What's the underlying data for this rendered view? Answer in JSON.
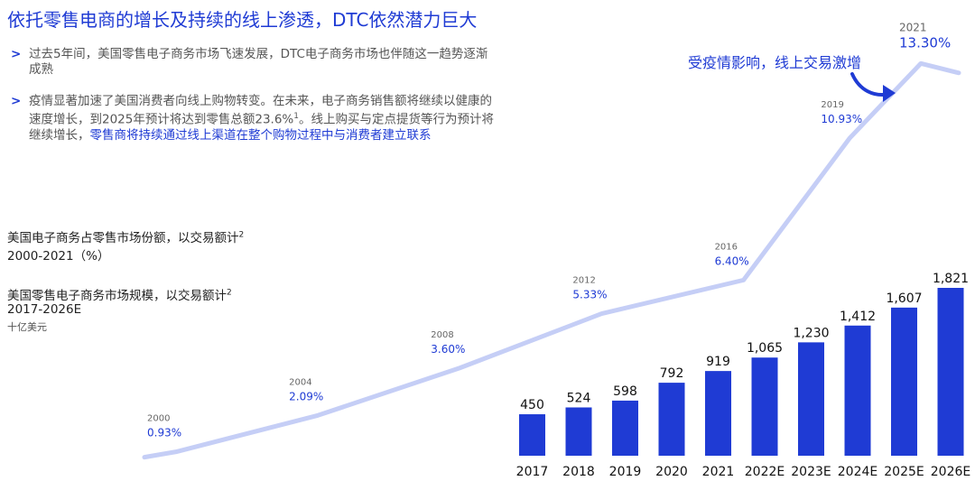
{
  "title": "依托零售电商的增长及持续的线上渗透，DTC依然潜力巨大",
  "bullets": {
    "b1": "过去5年间，美国零售电子商务市场飞速发展，DTC电子商务市场也伴随这一趋势逐渐成熟",
    "b2_a": "疫情显著加速了美国消费者向线上购物转变。在未来，电子商务销售额将继续以健康的速度增长，到2025年预计将达到零售总额23.6%",
    "b2_sup": "1",
    "b2_b": "。线上购买与定点提货等行为预计将继续增长，",
    "b2_hl": "零售商将持续通过线上渠道在整个购物过程中与消费者建立联系"
  },
  "labels": {
    "share_title": "美国电子商务占零售市场份额，以交易额计",
    "share_sup": "2",
    "share_range": "2000-2021（%）",
    "size_title": "美国零售电子商务市场规模，以交易额计",
    "size_sup": "2",
    "size_range": "2017-2026E",
    "size_unit": "十亿美元"
  },
  "annotation": "受疫情影响，线上交易激增",
  "colors": {
    "accent": "#1f3bd4",
    "bar": "#1f3bd4",
    "line": "#c5cef6"
  },
  "chart_data": [
    {
      "type": "line",
      "series": [
        {
          "x": [
            2000,
            2004,
            2008,
            2012,
            2016,
            2019,
            2021
          ],
          "values": [
            0.93,
            2.09,
            3.6,
            5.33,
            6.4,
            10.93,
            13.3
          ]
        }
      ],
      "point_labels": [
        {
          "year": "2000",
          "value": "0.93%"
        },
        {
          "year": "2004",
          "value": "2.09%"
        },
        {
          "year": "2008",
          "value": "3.60%"
        },
        {
          "year": "2012",
          "value": "5.33%"
        },
        {
          "year": "2016",
          "value": "6.40%"
        },
        {
          "year": "2019",
          "value": "10.93%"
        },
        {
          "year": "2021",
          "value": "13.30%"
        }
      ]
    },
    {
      "type": "bar",
      "categories": [
        "2017",
        "2018",
        "2019",
        "2020",
        "2021",
        "2022E",
        "2023E",
        "2024E",
        "2025E",
        "2026E"
      ],
      "values": [
        450,
        524,
        598,
        792,
        919,
        1065,
        1230,
        1412,
        1607,
        1821
      ],
      "value_labels": [
        "450",
        "524",
        "598",
        "792",
        "919",
        "1,065",
        "1,230",
        "1,412",
        "1,607",
        "1,821"
      ]
    }
  ]
}
